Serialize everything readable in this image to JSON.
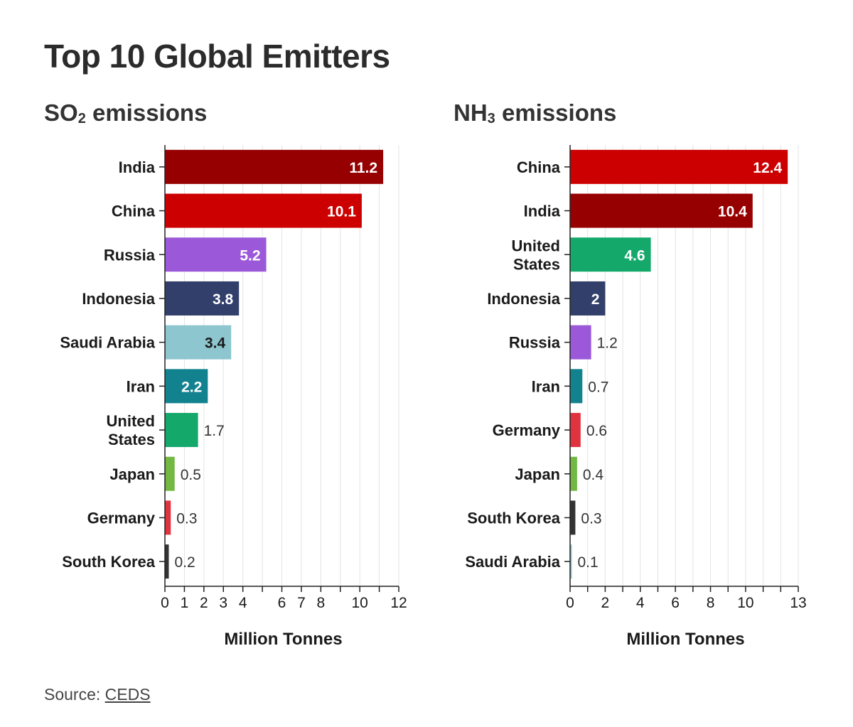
{
  "page": {
    "title": "Top 10 Global Emitters",
    "source_label": "Source: ",
    "source_link": "CEDS"
  },
  "chart_data": [
    {
      "type": "bar",
      "orientation": "horizontal",
      "title_main": "SO",
      "title_sub": "2",
      "title_rest": " emissions",
      "xlabel": "Million Tonnes",
      "xlim": [
        0,
        12
      ],
      "ticks": [
        0,
        1,
        2,
        3,
        4,
        5,
        6,
        7,
        8,
        9,
        10,
        11,
        12
      ],
      "tick_labels": [
        "0",
        "1",
        "2",
        "3",
        "4",
        "",
        "6",
        "7",
        "8",
        "",
        "10",
        "",
        "12"
      ],
      "categories": [
        [
          "India"
        ],
        [
          "China"
        ],
        [
          "Russia"
        ],
        [
          "Indonesia"
        ],
        [
          "Saudi Arabia"
        ],
        [
          "Iran"
        ],
        [
          "United",
          "States"
        ],
        [
          "Japan"
        ],
        [
          "Germany"
        ],
        [
          "South Korea"
        ]
      ],
      "values": [
        11.2,
        10.1,
        5.2,
        3.8,
        3.4,
        2.2,
        1.7,
        0.5,
        0.3,
        0.2
      ],
      "value_labels": [
        "11.2",
        "10.1",
        "5.2",
        "3.8",
        "3.4",
        "2.2",
        "1.7",
        "0.5",
        "0.3",
        "0.2"
      ],
      "colors": [
        "#970000",
        "#cc0000",
        "#9b59d9",
        "#323f6b",
        "#8ec6cf",
        "#13828f",
        "#14a86a",
        "#72b843",
        "#e03340",
        "#333333"
      ]
    },
    {
      "type": "bar",
      "orientation": "horizontal",
      "title_main": "NH",
      "title_sub": "3",
      "title_rest": " emissions",
      "xlabel": "Million Tonnes",
      "xlim": [
        0,
        13
      ],
      "ticks": [
        0,
        1,
        2,
        3,
        4,
        5,
        6,
        7,
        8,
        9,
        10,
        11,
        12,
        13
      ],
      "tick_labels": [
        "0",
        "",
        "2",
        "",
        "4",
        "",
        "6",
        "",
        "8",
        "",
        "10",
        "",
        "",
        "13"
      ],
      "categories": [
        [
          "China"
        ],
        [
          "India"
        ],
        [
          "United",
          "States"
        ],
        [
          "Indonesia"
        ],
        [
          "Russia"
        ],
        [
          "Iran"
        ],
        [
          "Germany"
        ],
        [
          "Japan"
        ],
        [
          "South Korea"
        ],
        [
          "Saudi Arabia"
        ]
      ],
      "values": [
        12.4,
        10.4,
        4.6,
        2,
        1.2,
        0.7,
        0.6,
        0.4,
        0.3,
        0.1
      ],
      "value_labels": [
        "12.4",
        "10.4",
        "4.6",
        "2",
        "1.2",
        "0.7",
        "0.6",
        "0.4",
        "0.3",
        "0.1"
      ],
      "colors": [
        "#cc0000",
        "#970000",
        "#14a86a",
        "#323f6b",
        "#9b59d9",
        "#13828f",
        "#e03340",
        "#72b843",
        "#333333",
        "#8ec6cf"
      ]
    }
  ]
}
